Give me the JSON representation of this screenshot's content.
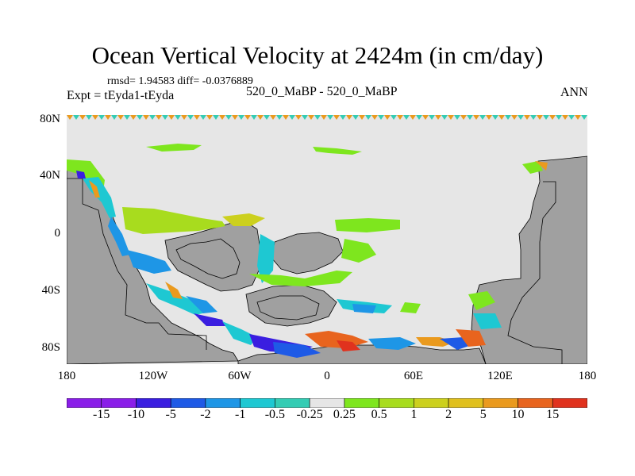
{
  "title": "Ocean Vertical Velocity at 2424m (in cm/day)",
  "stats": "rmsd= 1.94583 diff= -0.0376889",
  "experiment": "Expt = tEyda1-tEyda",
  "cases": "520_0_MaBP - 520_0_MaBP",
  "season": "ANN",
  "map": {
    "lon_range": [
      -180,
      180
    ],
    "lat_range": [
      -90,
      90
    ],
    "lat_labels": [
      {
        "lat": 80,
        "text": "80N"
      },
      {
        "lat": 40,
        "text": "40N"
      },
      {
        "lat": 0,
        "text": "0"
      },
      {
        "lat": -40,
        "text": "40S"
      },
      {
        "lat": -80,
        "text": "80S"
      }
    ],
    "lon_labels": [
      {
        "lon": -180,
        "text": "180"
      },
      {
        "lon": -120,
        "text": "120W"
      },
      {
        "lon": -60,
        "text": "60W"
      },
      {
        "lon": 0,
        "text": "0"
      },
      {
        "lon": 60,
        "text": "60E"
      },
      {
        "lon": 120,
        "text": "120E"
      },
      {
        "lon": 180,
        "text": "180"
      }
    ],
    "land_color": "#a0a0a0",
    "ocean_near_zero_color": "#e6e6e6"
  },
  "colorbar": {
    "labels": [
      "-15",
      "-10",
      "-5",
      "-2",
      "-1",
      "-0.5",
      "-0.25",
      "0.25",
      "0.5",
      "1",
      "2",
      "5",
      "10",
      "15"
    ],
    "colors": [
      "#8a1ee8",
      "#3a1ee0",
      "#1e5ae6",
      "#1e96e6",
      "#1ec8d2",
      "#34ccb4",
      "#e6e6e6",
      "#7ee61e",
      "#a8dc1e",
      "#ccd01e",
      "#e0c01e",
      "#ea9a1e",
      "#e8641e",
      "#e0321e"
    ]
  }
}
